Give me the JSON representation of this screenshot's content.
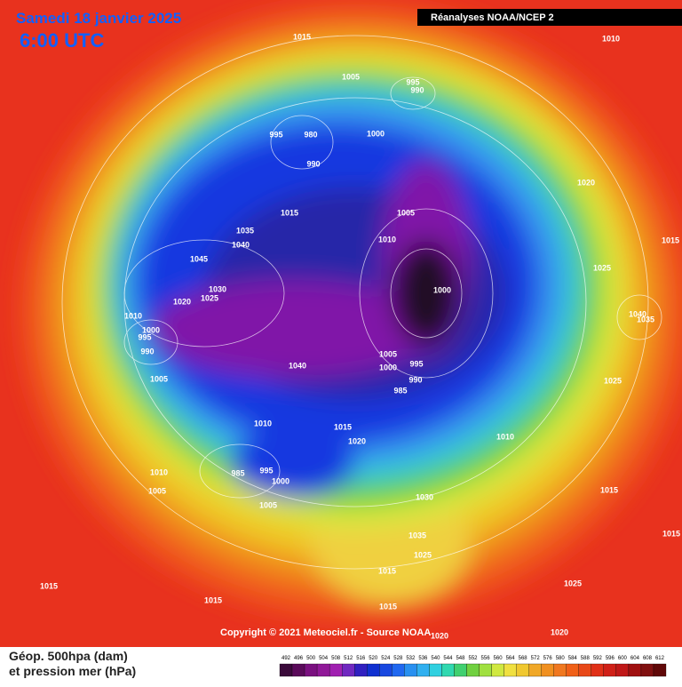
{
  "header": {
    "date": "Samedi 18 janvier 2025",
    "time": "6:00 UTC",
    "source": "Réanalyses NOAA/NCEP 2"
  },
  "pressure_labels": [
    1015,
    1010,
    1005,
    995,
    990,
    995,
    980,
    1000,
    990,
    1005,
    1015,
    1035,
    1040,
    1010,
    1020,
    1015,
    1045,
    1025,
    1030,
    1020,
    1025,
    1000,
    1010,
    1000,
    995,
    990,
    1040,
    1035,
    1005,
    1000,
    995,
    1040,
    1005,
    990,
    985,
    1025,
    1010,
    1015,
    1020,
    1010,
    985,
    995,
    1000,
    1010,
    1005,
    1005,
    1030,
    1015,
    1035,
    1025,
    1015,
    1015,
    1015,
    1025,
    1020,
    1015,
    1015,
    1020
  ],
  "footer": {
    "copyright": "Copyright © 2021 Meteociel.fr - Source NOAA",
    "legend_line1": "Géop. 500hpa (dam)",
    "legend_line2": "et pression mer (hPa)"
  },
  "color_scale": [
    492,
    496,
    500,
    504,
    508,
    512,
    516,
    520,
    524,
    528,
    532,
    536,
    540,
    544,
    548,
    552,
    556,
    560,
    564,
    568,
    572,
    576,
    580,
    584,
    588,
    592,
    596,
    600,
    604,
    608,
    612
  ]
}
